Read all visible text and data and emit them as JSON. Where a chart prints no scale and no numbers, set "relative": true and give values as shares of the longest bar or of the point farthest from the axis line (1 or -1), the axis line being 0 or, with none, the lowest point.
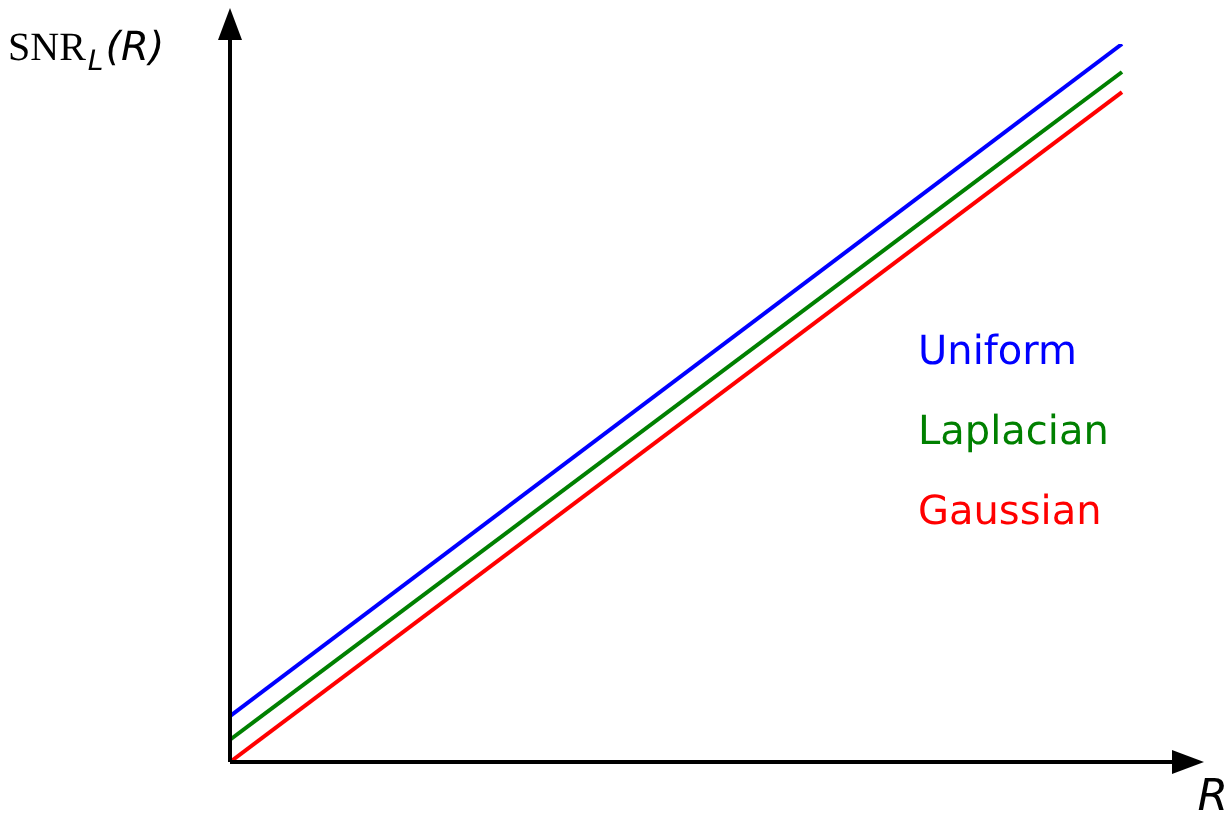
{
  "chart_data": {
    "type": "line",
    "relative": true,
    "xlabel": "R",
    "ylabel": "SNR$_{L}$(R)",
    "categories": [
      null,
      null
    ],
    "legend": "right",
    "series": [
      {
        "name": "Uniform",
        "color": "#0000ff",
        "values": [
          0.064,
          1
        ]
      },
      {
        "name": "Laplacian",
        "color": "#008000",
        "values": [
          0.031,
          0.961
        ]
      },
      {
        "name": "Gaussian",
        "color": "#ff0000",
        "values": [
          0,
          0.933
        ]
      }
    ]
  }
}
